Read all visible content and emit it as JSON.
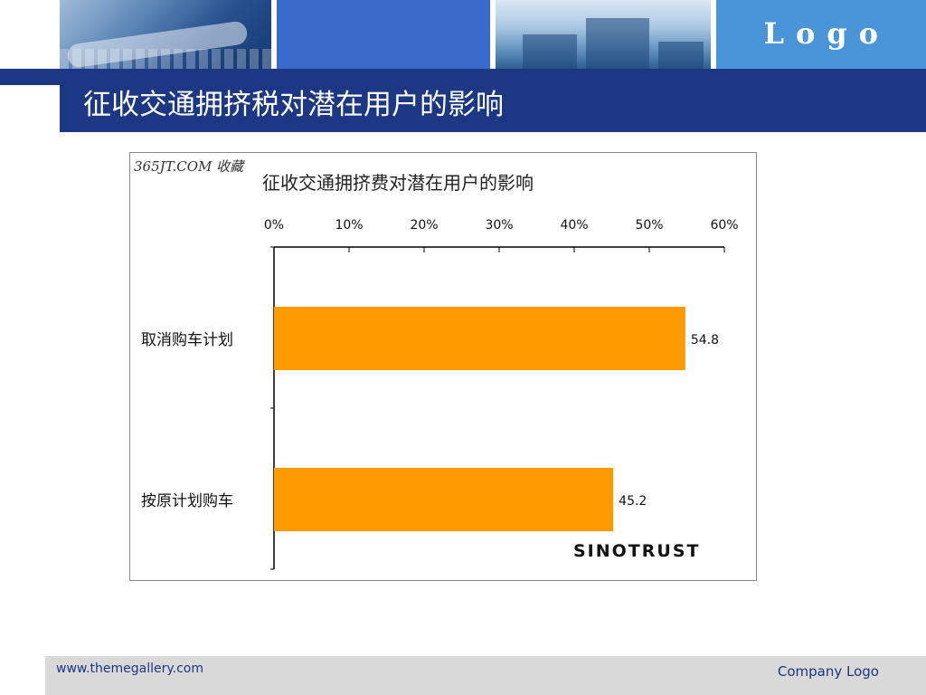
{
  "header": {
    "logo_text": "Logo",
    "colors": {
      "blue_block": "#3a6bcb",
      "logo_block": "#4a95d8"
    }
  },
  "slide": {
    "title": "征收交通拥挤税对潜在用户的影响",
    "title_bar_color": "#1c3784"
  },
  "chart_data": {
    "type": "bar",
    "orientation": "horizontal",
    "watermark": "365JT.COM 收藏",
    "title": "征收交通拥挤费对潜在用户的影响",
    "categories": [
      "取消购车计划",
      "按原计划购车"
    ],
    "values": [
      54.8,
      45.2
    ],
    "value_labels": [
      "54.8",
      "45.2"
    ],
    "x_ticks": [
      "0%",
      "10%",
      "20%",
      "30%",
      "40%",
      "50%",
      "60%"
    ],
    "xlim": [
      0,
      60
    ],
    "x_axis_position": "top",
    "bar_color": "#ff9900",
    "grid": false,
    "legend": "none",
    "source": "SINOTRUST"
  },
  "footer": {
    "url": "www.themegallery.com",
    "company": "Company Logo"
  }
}
